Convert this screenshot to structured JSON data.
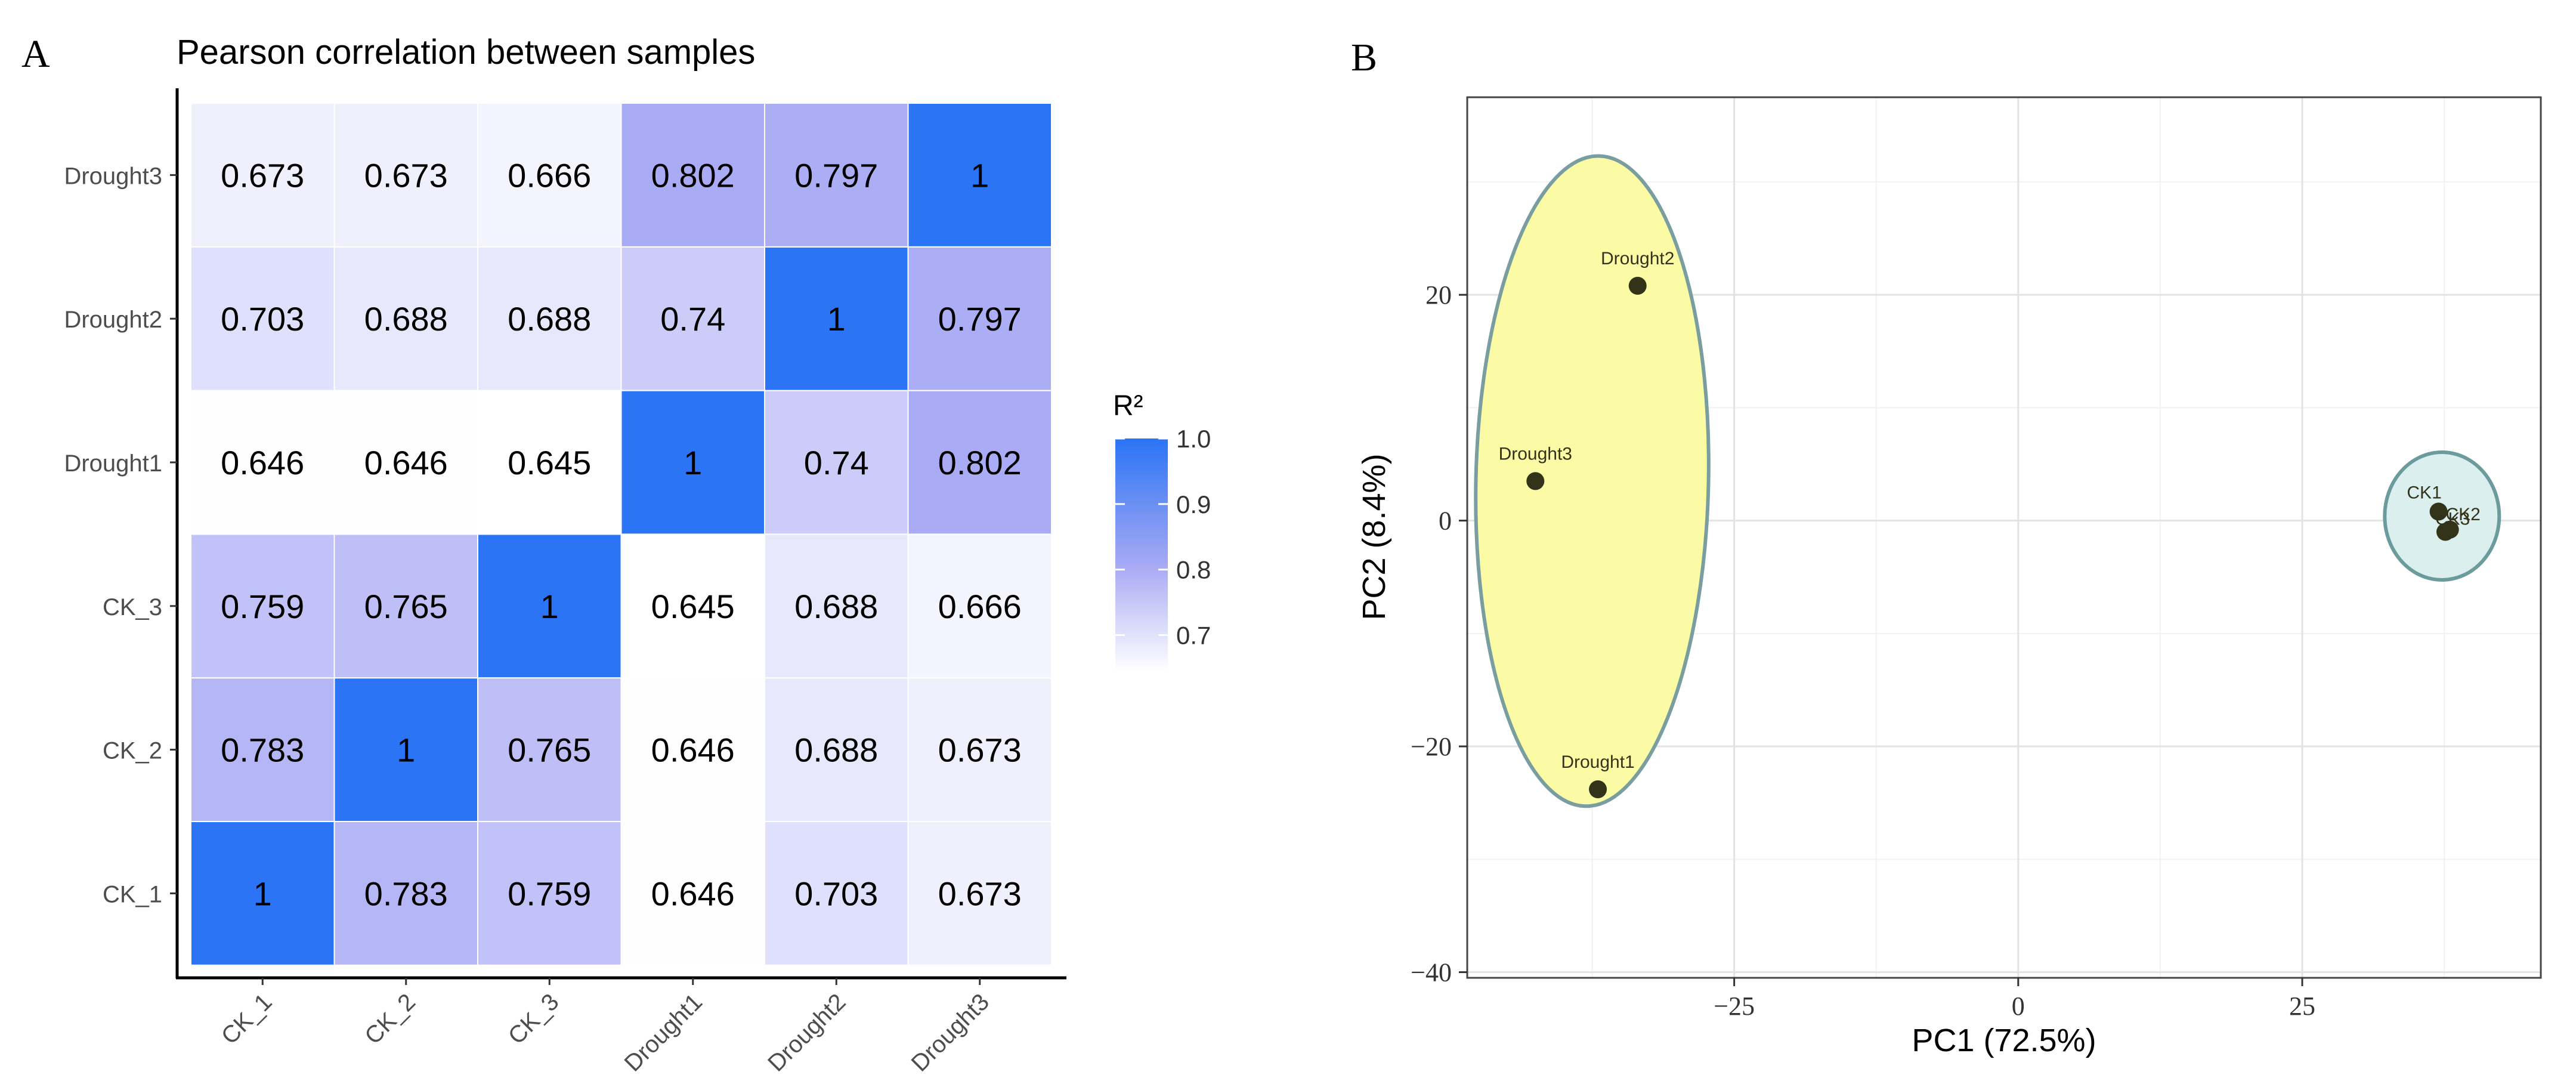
{
  "panels": {
    "a_label": "A",
    "b_label": "B"
  },
  "chart_data": [
    {
      "type": "heatmap",
      "title": "Pearson correlation between samples",
      "x_categories": [
        "CK_1",
        "CK_2",
        "CK_3",
        "Drought1",
        "Drought2",
        "Drought3"
      ],
      "y_categories": [
        "CK_1",
        "CK_2",
        "CK_3",
        "Drought1",
        "Drought2",
        "Drought3"
      ],
      "values": [
        [
          1,
          0.783,
          0.759,
          0.646,
          0.703,
          0.673
        ],
        [
          0.783,
          1,
          0.765,
          0.646,
          0.688,
          0.673
        ],
        [
          0.759,
          0.765,
          1,
          0.645,
          0.688,
          0.666
        ],
        [
          0.646,
          0.646,
          0.645,
          1,
          0.74,
          0.802
        ],
        [
          0.703,
          0.688,
          0.688,
          0.74,
          1,
          0.797
        ],
        [
          0.673,
          0.673,
          0.666,
          0.802,
          0.797,
          1
        ]
      ],
      "colorbar": {
        "title": "R²",
        "ticks": [
          "1.0",
          "0.9",
          "0.8",
          "0.7"
        ],
        "range": [
          0.645,
          1.0
        ],
        "low_color": "#ffffff",
        "mid_color": "#a8aaf4",
        "high_color": "#2a74f5"
      },
      "grid": false
    },
    {
      "type": "scatter",
      "xlabel": "PC1 (72.5%)",
      "ylabel": "PC2 (8.4%)",
      "xlim": [
        -48.5,
        46
      ],
      "ylim": [
        -40.5,
        37.5
      ],
      "x_ticks": [
        "−25",
        "0",
        "25"
      ],
      "y_ticks": [
        "20",
        "0",
        "−20",
        "−40"
      ],
      "grid": true,
      "points": [
        {
          "label": "Drought1",
          "x": -37,
          "y": -23.8,
          "group": "Drought"
        },
        {
          "label": "Drought2",
          "x": -33.5,
          "y": 20.8,
          "group": "Drought"
        },
        {
          "label": "Drought3",
          "x": -42.5,
          "y": 3.5,
          "group": "Drought"
        },
        {
          "label": "CK1",
          "x": 37,
          "y": 0.8,
          "group": "CK"
        },
        {
          "label": "CK2",
          "x": 38,
          "y": -0.8,
          "group": "CK"
        },
        {
          "label": "CK3",
          "x": 37.6,
          "y": -1.0,
          "group": "CK"
        }
      ],
      "groups": [
        {
          "name": "Drought",
          "fill": "#fbfba6",
          "stroke": "#7a9e9f"
        },
        {
          "name": "CK",
          "fill": "#dcefef",
          "stroke": "#6b9b9c"
        }
      ],
      "point_color": "#333319"
    }
  ]
}
